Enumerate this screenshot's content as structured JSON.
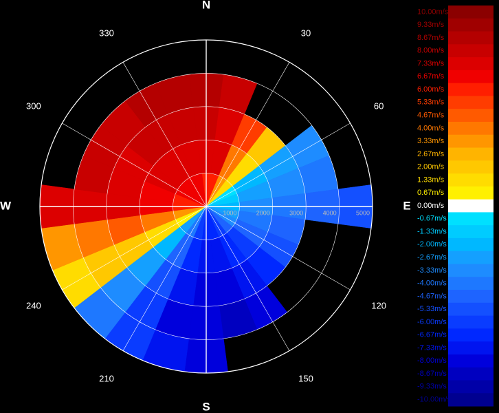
{
  "chart_data": {
    "type": "polar-radar",
    "azimuths": [
      0,
      15,
      30,
      45,
      60,
      75,
      90,
      105,
      120,
      135,
      150,
      165,
      180,
      195,
      210,
      225,
      240,
      255,
      270,
      285,
      300,
      315,
      330,
      345
    ],
    "ranges": [
      0,
      1000,
      2000,
      3000,
      4000,
      5000
    ],
    "values": [
      [
        6,
        7,
        8,
        8.67,
        null
      ],
      [
        6,
        7,
        7.33,
        8,
        null
      ],
      [
        3.33,
        4,
        5.33,
        null,
        null
      ],
      [
        1.33,
        1.33,
        2,
        null,
        null
      ],
      [
        -0.67,
        -2,
        -2.67,
        -3.33,
        null
      ],
      [
        -1.33,
        -2.67,
        -3.33,
        -4,
        null
      ],
      [
        -2,
        -3.33,
        -4,
        -4.67,
        -5.33
      ],
      [
        -2.67,
        -4,
        -4.67,
        null,
        null
      ],
      [
        -3.33,
        -4.67,
        -5.33,
        null,
        null
      ],
      [
        -4.67,
        -6,
        -6.67,
        null,
        null
      ],
      [
        -6,
        -6.67,
        -7.33,
        -8,
        null
      ],
      [
        -6.67,
        -7.33,
        -8,
        -8.67,
        null
      ],
      [
        -6.67,
        -7.33,
        -8,
        -8,
        -8
      ],
      [
        -6,
        -6.67,
        -7.33,
        -8,
        -7.33
      ],
      [
        -4,
        -4.67,
        -5.33,
        -6,
        -6
      ],
      [
        -2.67,
        -2,
        -2.67,
        -3.33,
        -4
      ],
      [
        0.67,
        1.33,
        2,
        2,
        1.33
      ],
      [
        3.33,
        4,
        4.67,
        4,
        3.33
      ],
      [
        6,
        6.67,
        7.33,
        7.33,
        7.33
      ],
      [
        6,
        6.67,
        7.33,
        8,
        null
      ],
      [
        6.67,
        7.33,
        7.33,
        8,
        null
      ],
      [
        6.67,
        7.33,
        8,
        8,
        null
      ],
      [
        6.67,
        7.33,
        8,
        8.67,
        null
      ],
      [
        6.67,
        7.33,
        8,
        8.67,
        null
      ]
    ],
    "angle_labels": [
      30,
      60,
      120,
      150,
      210,
      240,
      300,
      330
    ],
    "compass": [
      {
        "value": 0,
        "label": "N"
      },
      {
        "value": 90,
        "label": "E"
      },
      {
        "value": 180,
        "label": "S"
      },
      {
        "value": 270,
        "label": "W"
      }
    ],
    "range_ticks": [
      1000,
      2000,
      3000,
      4000,
      5000
    ],
    "colorbar": [
      {
        "value": 10,
        "label": "10.00m/s",
        "color": "#8b0000"
      },
      {
        "value": 9.33,
        "label": "9.33m/s",
        "color": "#a00000"
      },
      {
        "value": 8.67,
        "label": "8.67m/s",
        "color": "#b40000"
      },
      {
        "value": 8,
        "label": "8.00m/s",
        "color": "#c80000"
      },
      {
        "value": 7.33,
        "label": "7.33m/s",
        "color": "#dc0000"
      },
      {
        "value": 6.67,
        "label": "6.67m/s",
        "color": "#f00000"
      },
      {
        "value": 6,
        "label": "6.00m/s",
        "color": "#ff1e00"
      },
      {
        "value": 5.33,
        "label": "5.33m/s",
        "color": "#ff3c00"
      },
      {
        "value": 4.67,
        "label": "4.67m/s",
        "color": "#ff5a00"
      },
      {
        "value": 4,
        "label": "4.00m/s",
        "color": "#ff7800"
      },
      {
        "value": 3.33,
        "label": "3.33m/s",
        "color": "#ff9600"
      },
      {
        "value": 2.67,
        "label": "2.67m/s",
        "color": "#ffb400"
      },
      {
        "value": 2,
        "label": "2.00m/s",
        "color": "#ffc800"
      },
      {
        "value": 1.33,
        "label": "1.33m/s",
        "color": "#ffdc00"
      },
      {
        "value": 0.67,
        "label": "0.67m/s",
        "color": "#fff000"
      },
      {
        "value": 0,
        "label": "0.00m/s",
        "color": "#ffffff"
      },
      {
        "value": -0.67,
        "label": "-0.67m/s",
        "color": "#00e0ff"
      },
      {
        "value": -1.33,
        "label": "-1.33m/s",
        "color": "#00ccff"
      },
      {
        "value": -2,
        "label": "-2.00m/s",
        "color": "#00b8ff"
      },
      {
        "value": -2.67,
        "label": "-2.67m/s",
        "color": "#14a0ff"
      },
      {
        "value": -3.33,
        "label": "-3.33m/s",
        "color": "#1e8cff"
      },
      {
        "value": -4,
        "label": "-4.00m/s",
        "color": "#1e78ff"
      },
      {
        "value": -4.67,
        "label": "-4.67m/s",
        "color": "#1e64ff"
      },
      {
        "value": -5.33,
        "label": "-5.33m/s",
        "color": "#1450ff"
      },
      {
        "value": -6,
        "label": "-6.00m/s",
        "color": "#0a3cff"
      },
      {
        "value": -6.67,
        "label": "-6.67m/s",
        "color": "#0028ff"
      },
      {
        "value": -7.33,
        "label": "-7.33m/s",
        "color": "#0014f0"
      },
      {
        "value": -8,
        "label": "-8.00m/s",
        "color": "#0000dc"
      },
      {
        "value": -8.67,
        "label": "-8.67m/s",
        "color": "#0000c0"
      },
      {
        "value": -9.33,
        "label": "-9.33m/s",
        "color": "#0000a8"
      },
      {
        "value": -10,
        "label": "-10.00m/s",
        "color": "#000090"
      }
    ]
  }
}
